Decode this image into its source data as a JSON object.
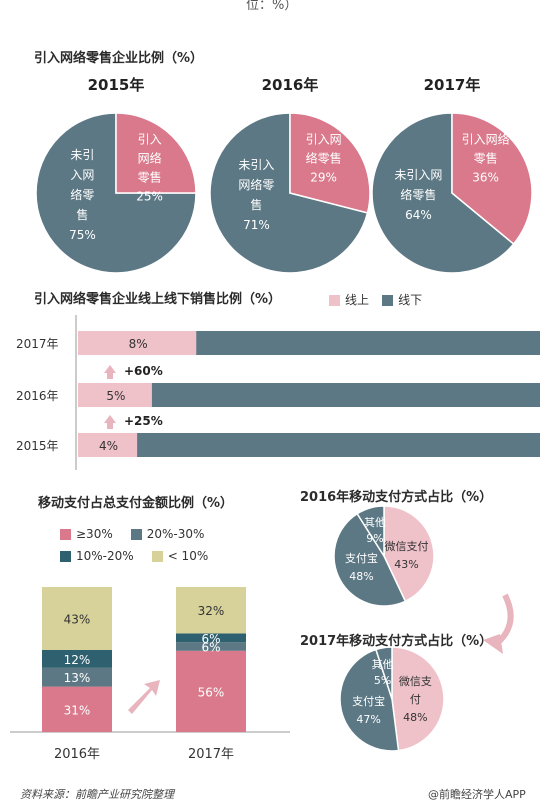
{
  "colors": {
    "pink": "#d9798b",
    "gray": "#5c7884",
    "teal": "#2f6070",
    "khaki": "#d6d29a",
    "light_pink": "#efc2ca",
    "arrow": "#e8b4bd"
  },
  "header_clip": "位：%）",
  "section1": {
    "title": "引入网络零售企业比例（%）",
    "pies": [
      {
        "year": "2015年",
        "online_label": [
          "引入",
          "网络",
          "零售"
        ],
        "online_pct": "25%",
        "online": 25,
        "other_label": [
          "未引",
          "入网",
          "络零",
          "售"
        ],
        "other_pct": "75%",
        "other": 75
      },
      {
        "year": "2016年",
        "online_label": [
          "引入网",
          "络零售"
        ],
        "online_pct": "29%",
        "online": 29,
        "other_label": [
          "未引入",
          "网络零",
          "售"
        ],
        "other_pct": "71%",
        "other": 71
      },
      {
        "year": "2017年",
        "online_label": [
          "引入网络",
          "零售"
        ],
        "online_pct": "36%",
        "online": 36,
        "other_label": [
          "未引入网",
          "络零售"
        ],
        "other_pct": "64%",
        "other": 64
      }
    ]
  },
  "section2": {
    "title": "引入网络零售企业线上线下销售比例（%）",
    "legend": [
      {
        "label": "线上",
        "color": "#efc2ca"
      },
      {
        "label": "线下",
        "color": "#5c7884"
      }
    ],
    "rows": [
      {
        "year": "2017年",
        "online": 8,
        "label": "8%"
      },
      {
        "year": "2016年",
        "online": 5,
        "label": "5%"
      },
      {
        "year": "2015年",
        "online": 4,
        "label": "4%"
      }
    ],
    "growth": [
      "+60%",
      "+25%"
    ]
  },
  "section3": {
    "title": "移动支付占总支付金额比例（%）",
    "legend": [
      {
        "label": "≥30%",
        "color": "#d9798b"
      },
      {
        "label": "20%-30%",
        "color": "#5c7884"
      },
      {
        "label": "10%-20%",
        "color": "#2f6070"
      },
      {
        "label": "< 10%",
        "color": "#d6d29a"
      }
    ],
    "bars": [
      {
        "year": "2016年",
        "segments": [
          {
            "value": 31,
            "label": "31%",
            "color": "#d9798b"
          },
          {
            "value": 13,
            "label": "13%",
            "color": "#5c7884"
          },
          {
            "value": 12,
            "label": "12%",
            "color": "#2f6070"
          },
          {
            "value": 43,
            "label": "43%",
            "color": "#d6d29a"
          }
        ]
      },
      {
        "year": "2017年",
        "segments": [
          {
            "value": 56,
            "label": "56%",
            "color": "#d9798b"
          },
          {
            "value": 6,
            "label": "6%",
            "color": "#5c7884"
          },
          {
            "value": 6,
            "label": "6%",
            "color": "#2f6070"
          },
          {
            "value": 32,
            "label": "32%",
            "color": "#d6d29a"
          }
        ]
      }
    ]
  },
  "section4": {
    "pies": [
      {
        "title": "2016年移动支付方式占比（%）",
        "slices": [
          {
            "name": "微信支付",
            "label": [
              "微信支付",
              "43%"
            ],
            "value": 43,
            "color": "#efc2ca"
          },
          {
            "name": "支付宝",
            "label": [
              "支付宝",
              "48%"
            ],
            "value": 48,
            "color": "#5c7884"
          },
          {
            "name": "其他",
            "label": [
              "其他",
              "9%"
            ],
            "value": 9,
            "color": "#5c7884"
          }
        ]
      },
      {
        "title": "2017年移动支付方式占比（%）",
        "slices": [
          {
            "name": "微信支付",
            "label": [
              "微信支",
              "付",
              "48%"
            ],
            "value": 48,
            "color": "#efc2ca"
          },
          {
            "name": "支付宝",
            "label": [
              "支付宝",
              "47%"
            ],
            "value": 47,
            "color": "#5c7884"
          },
          {
            "name": "其他",
            "label": [
              "其他",
              "5%"
            ],
            "value": 5,
            "color": "#5c7884"
          }
        ]
      }
    ]
  },
  "footer": {
    "source": "资料来源：前瞻产业研究院整理",
    "brand": "@前瞻经济学人APP"
  },
  "chart_data": [
    {
      "type": "pie",
      "title": "引入网络零售企业比例（%）",
      "subtitle": "2015年",
      "labels": [
        "引入网络零售",
        "未引入网络零售"
      ],
      "values": [
        25,
        75
      ]
    },
    {
      "type": "pie",
      "title": "引入网络零售企业比例（%）",
      "subtitle": "2016年",
      "labels": [
        "引入网络零售",
        "未引入网络零售"
      ],
      "values": [
        29,
        71
      ]
    },
    {
      "type": "pie",
      "title": "引入网络零售企业比例（%）",
      "subtitle": "2017年",
      "labels": [
        "引入网络零售",
        "未引入网络零售"
      ],
      "values": [
        36,
        64
      ]
    },
    {
      "type": "bar",
      "orientation": "horizontal",
      "stacked": true,
      "title": "引入网络零售企业线上线下销售比例（%）",
      "categories": [
        "2017年",
        "2016年",
        "2015年"
      ],
      "series": [
        {
          "name": "线上",
          "values": [
            8,
            5,
            4
          ]
        },
        {
          "name": "线下",
          "values": [
            92,
            95,
            96
          ]
        }
      ],
      "annotations": [
        "+60%",
        "+25%"
      ]
    },
    {
      "type": "bar",
      "stacked": true,
      "title": "移动支付占总支付金额比例（%）",
      "categories": [
        "2016年",
        "2017年"
      ],
      "series": [
        {
          "name": "≥30%",
          "values": [
            31,
            56
          ]
        },
        {
          "name": "20%-30%",
          "values": [
            13,
            6
          ]
        },
        {
          "name": "10%-20%",
          "values": [
            12,
            6
          ]
        },
        {
          "name": "< 10%",
          "values": [
            43,
            32
          ]
        }
      ]
    },
    {
      "type": "pie",
      "title": "2016年移动支付方式占比（%）",
      "labels": [
        "微信支付",
        "支付宝",
        "其他"
      ],
      "values": [
        43,
        48,
        9
      ]
    },
    {
      "type": "pie",
      "title": "2017年移动支付方式占比（%）",
      "labels": [
        "微信支付",
        "支付宝",
        "其他"
      ],
      "values": [
        48,
        47,
        5
      ]
    }
  ]
}
